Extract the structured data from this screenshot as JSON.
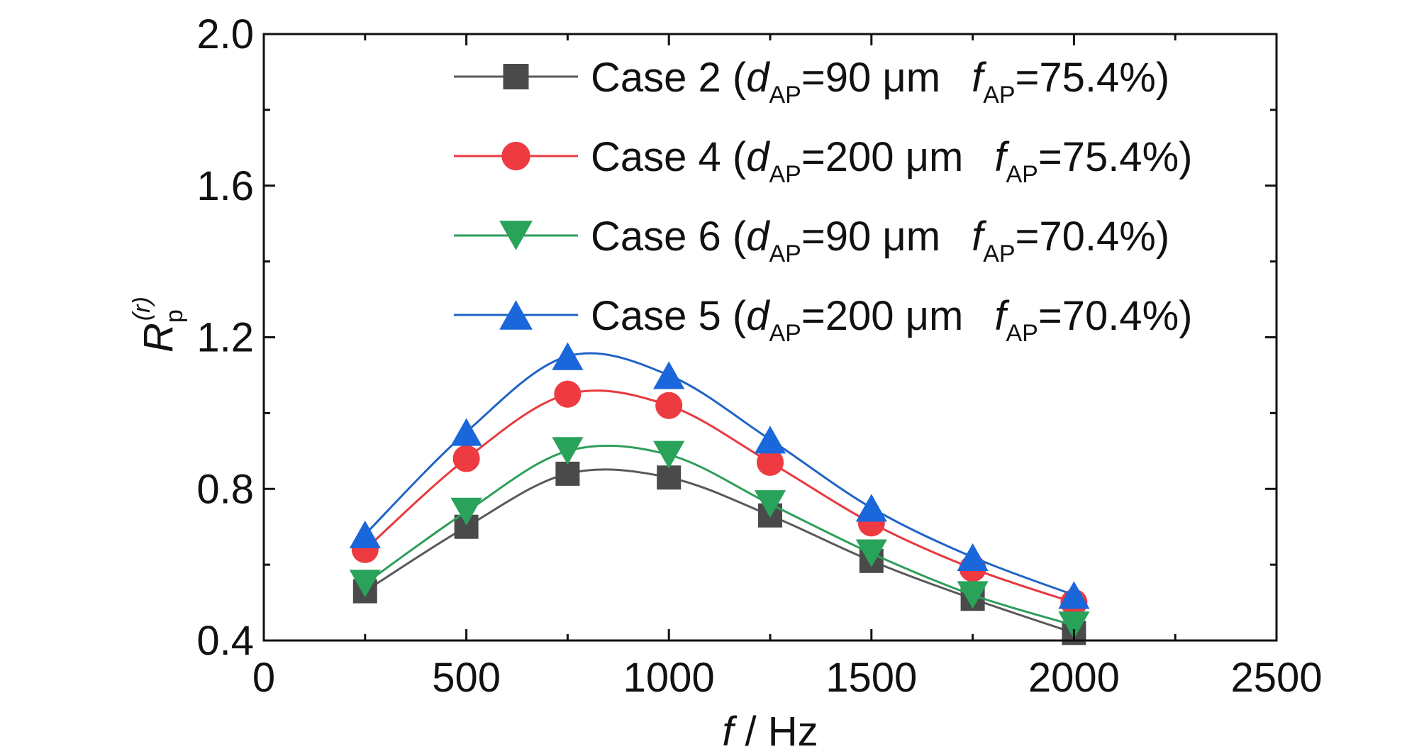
{
  "chart_data": {
    "type": "line",
    "title": "",
    "xlabel": {
      "var": "f",
      "rest": " / Hz"
    },
    "ylabel": {
      "main": "R",
      "sub": "p",
      "sup": "(r)"
    },
    "xlim": [
      0,
      2500
    ],
    "ylim": [
      0.4,
      2.0
    ],
    "xticks": [
      0,
      500,
      1000,
      1500,
      2000,
      2500
    ],
    "xtick_labels": [
      "0",
      "500",
      "1000",
      "1500",
      "2000",
      "2500"
    ],
    "yticks": [
      0.4,
      0.8,
      1.2,
      1.6,
      2.0
    ],
    "ytick_labels": [
      "0.4",
      "0.8",
      "1.2",
      "1.6",
      "2.0"
    ],
    "grid": false,
    "legend_position": "top-center",
    "x": [
      250,
      500,
      750,
      1000,
      1250,
      1500,
      1750,
      2000
    ],
    "series": [
      {
        "name": "Case 2 (dAP=90 μm fAP=75.4%)",
        "label": {
          "prefix": "Case 2 (",
          "d": "d",
          "dsub": "AP",
          "dval": "=90 μm",
          "f": "f",
          "fsub": "AP",
          "fval": "=75.4%)"
        },
        "marker": "square",
        "color": "#595959",
        "markerColor": "#4a4a4a",
        "values": [
          0.53,
          0.7,
          0.84,
          0.83,
          0.73,
          0.61,
          0.51,
          0.42
        ]
      },
      {
        "name": "Case 4 (dAP=200 μm fAP=75.4%)",
        "label": {
          "prefix": "Case 4 (",
          "d": "d",
          "dsub": "AP",
          "dval": "=200 μm",
          "f": "f",
          "fsub": "AP",
          "fval": "=75.4%)"
        },
        "marker": "circle",
        "color": "#e8393f",
        "markerColor": "#ee3a41",
        "values": [
          0.64,
          0.88,
          1.05,
          1.02,
          0.87,
          0.71,
          0.59,
          0.5
        ]
      },
      {
        "name": "Case 6 (dAP=90 μm fAP=70.4%)",
        "label": {
          "prefix": "Case 6 (",
          "d": "d",
          "dsub": "AP",
          "dval": "=90 μm",
          "f": "f",
          "fsub": "AP",
          "fval": "=70.4%)"
        },
        "marker": "triangle-down",
        "color": "#2e9e5b",
        "markerColor": "#29a35a",
        "values": [
          0.55,
          0.74,
          0.9,
          0.89,
          0.76,
          0.63,
          0.52,
          0.44
        ]
      },
      {
        "name": "Case 5 (dAP=200 μm fAP=70.4%)",
        "label": {
          "prefix": "Case 5 (",
          "d": "d",
          "dsub": "AP",
          "dval": "=200 μm",
          "f": "f",
          "fsub": "AP",
          "fval": "=70.4%)"
        },
        "marker": "triangle-up",
        "color": "#1f63c6",
        "markerColor": "#1a66db",
        "values": [
          0.68,
          0.95,
          1.15,
          1.1,
          0.93,
          0.75,
          0.62,
          0.52
        ]
      }
    ]
  }
}
